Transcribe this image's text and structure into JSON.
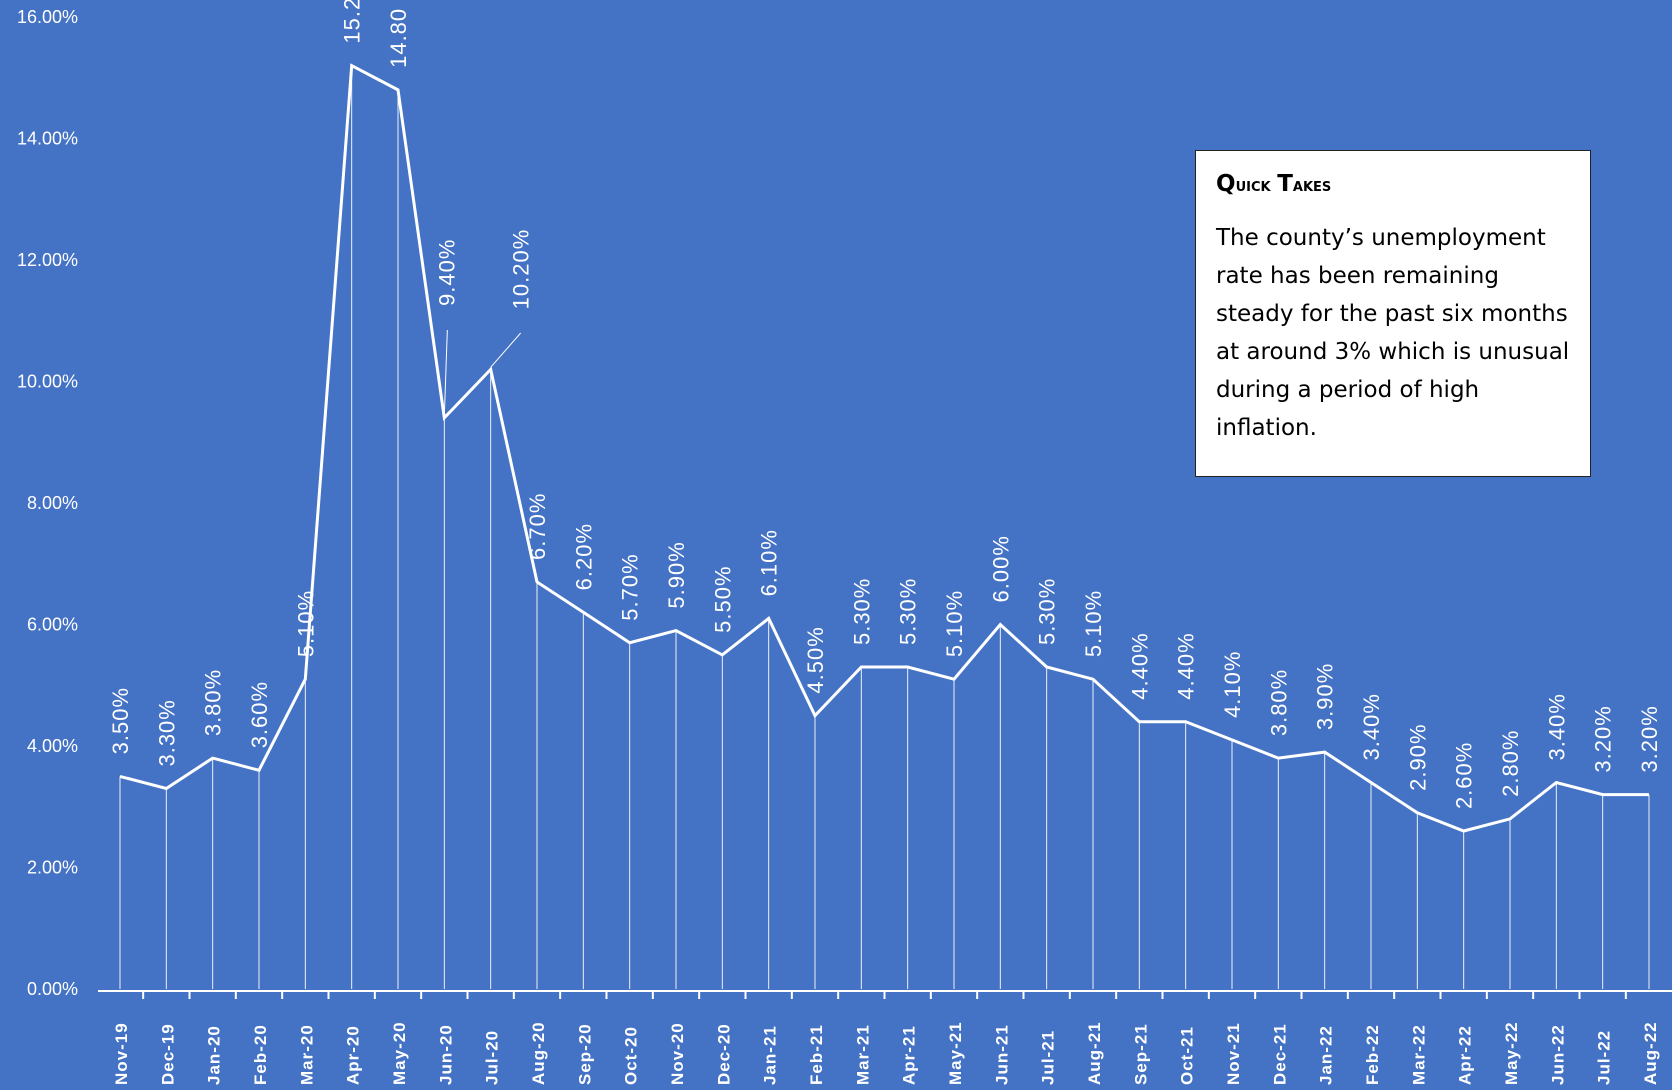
{
  "chart_data": {
    "type": "line",
    "categories": [
      "Nov-19",
      "Dec-19",
      "Jan-20",
      "Feb-20",
      "Mar-20",
      "Apr-20",
      "May-20",
      "Jun-20",
      "Jul-20",
      "Aug-20",
      "Sep-20",
      "Oct-20",
      "Nov-20",
      "Dec-20",
      "Jan-21",
      "Feb-21",
      "Mar-21",
      "Apr-21",
      "May-21",
      "Jun-21",
      "Jul-21",
      "Aug-21",
      "Sep-21",
      "Oct-21",
      "Nov-21",
      "Dec-21",
      "Jan-22",
      "Feb-22",
      "Mar-22",
      "Apr-22",
      "May-22",
      "Jun-22",
      "Jul-22",
      "Aug-22"
    ],
    "values": [
      3.5,
      3.3,
      3.8,
      3.6,
      5.1,
      15.2,
      14.8,
      9.4,
      10.2,
      6.7,
      6.2,
      5.7,
      5.9,
      5.5,
      6.1,
      4.5,
      5.3,
      5.3,
      5.1,
      6.0,
      5.3,
      5.1,
      4.4,
      4.4,
      4.1,
      3.8,
      3.9,
      3.4,
      2.9,
      2.6,
      2.8,
      3.4,
      3.2,
      3.2
    ],
    "data_labels": [
      "3.50%",
      "3.30%",
      "3.80%",
      "3.60%",
      "5.10%",
      "15.2",
      "14.80",
      "9.40%",
      "10.20%",
      "6.70%",
      "6.20%",
      "5.70%",
      "5.90%",
      "5.50%",
      "6.10%",
      "4.50%",
      "5.30%",
      "5.30%",
      "5.10%",
      "6.00%",
      "5.30%",
      "5.10%",
      "4.40%",
      "4.40%",
      "4.10%",
      "3.80%",
      "3.90%",
      "3.40%",
      "2.90%",
      "2.60%",
      "2.80%",
      "3.40%",
      "3.20%",
      "3.20%"
    ],
    "yticks": [
      "0.00%",
      "2.00%",
      "4.00%",
      "6.00%",
      "8.00%",
      "10.00%",
      "12.00%",
      "14.00%",
      "16.00%"
    ],
    "ylim": [
      0,
      16
    ],
    "xlabel": "",
    "ylabel": "",
    "title": "",
    "grid": false,
    "drop_lines": true,
    "colors": {
      "background": "#4472C4",
      "line": "#FFFFFF"
    }
  },
  "callout": {
    "title": "Quick Takes",
    "body": "The county’s unemployment rate has been remaining steady for the past six months at around 3% which is unusual during a period of high inflation."
  }
}
